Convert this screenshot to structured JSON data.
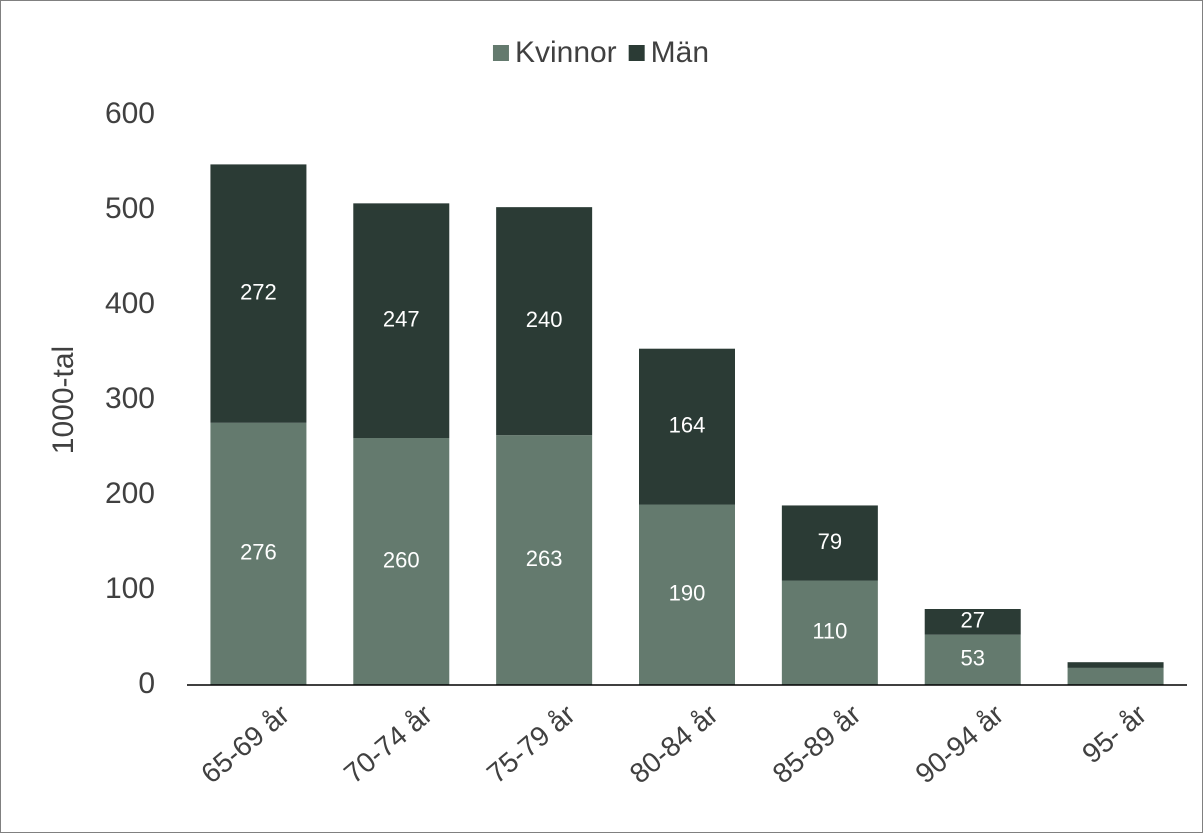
{
  "chart_data": {
    "type": "stacked_bar",
    "y_axis_label": "1000-tal",
    "categories": [
      "65-69 år",
      "70-74 år",
      "75-79 år",
      "80-84 år",
      "85-89 år",
      "90-94 år",
      "95- år"
    ],
    "series": [
      {
        "name": "Kvinnor",
        "color": "#647a6e",
        "values": [
          276,
          260,
          263,
          190,
          110,
          53,
          18
        ],
        "value_labels": [
          "276",
          "260",
          "263",
          "190",
          "110",
          "53",
          null
        ]
      },
      {
        "name": "Män",
        "color": "#2b3b35",
        "values": [
          272,
          247,
          240,
          164,
          79,
          27,
          6
        ],
        "value_labels": [
          "272",
          "247",
          "240",
          "164",
          "79",
          "27",
          null
        ]
      }
    ],
    "ylim": [
      0,
      600
    ],
    "yticks": [
      0,
      100,
      200,
      300,
      400,
      500,
      600
    ],
    "legend": "top"
  }
}
